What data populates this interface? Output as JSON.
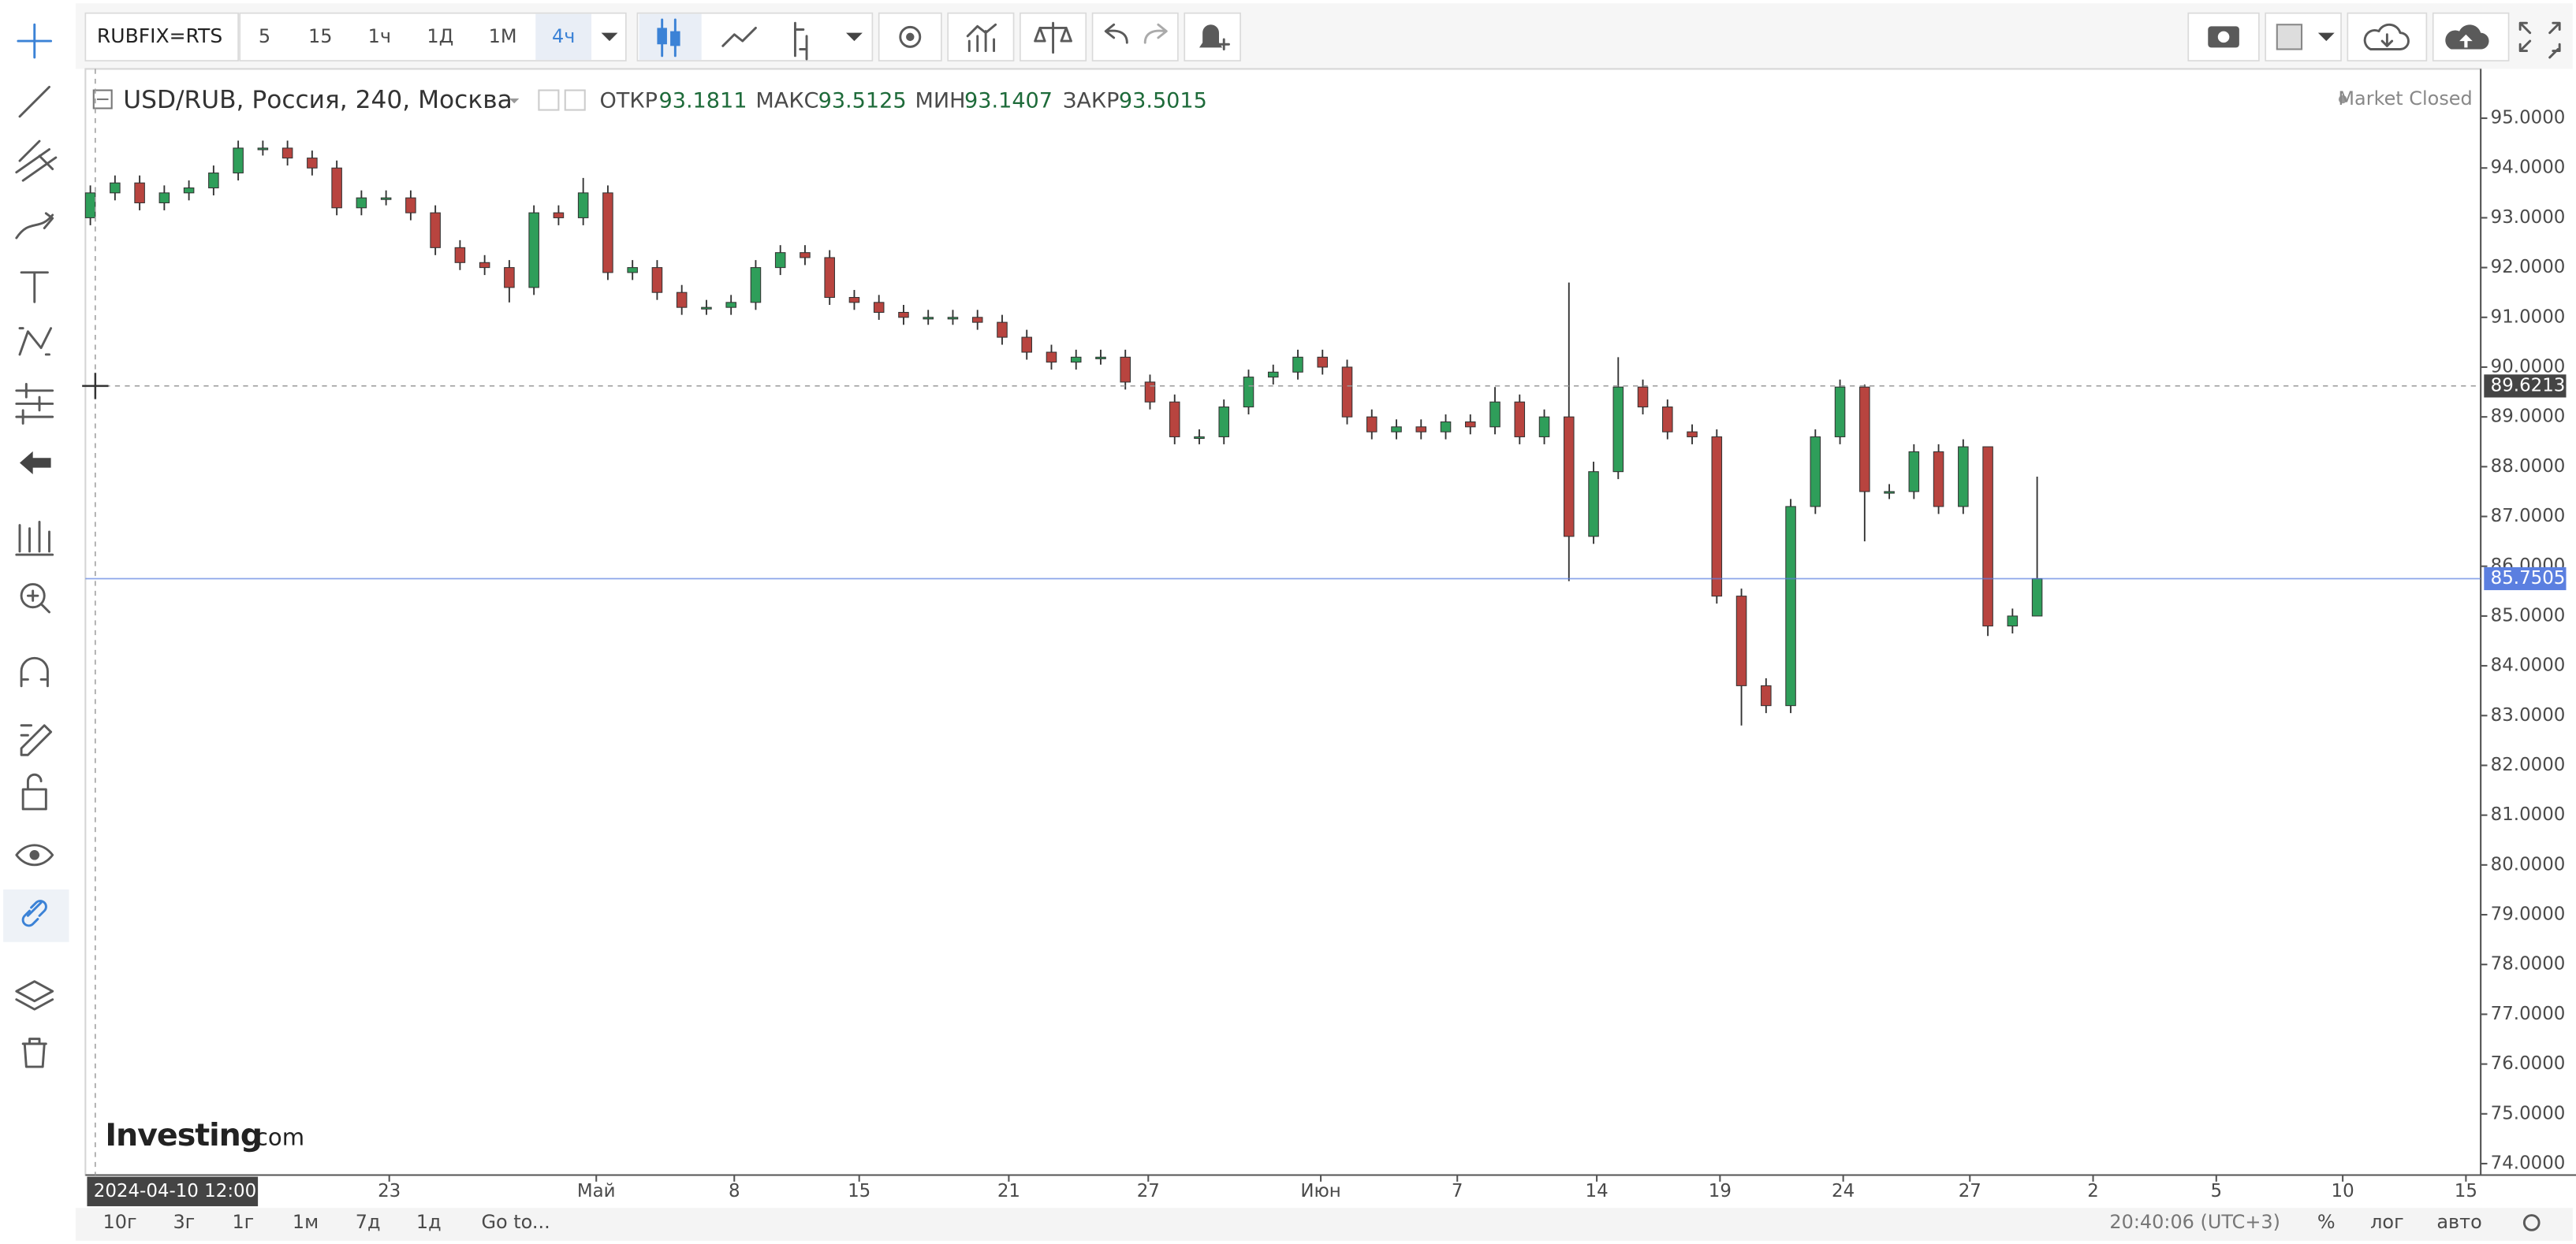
{
  "toolbar": {
    "symbol": "RUBFIX=RTS",
    "intervals": [
      "5",
      "15",
      "1ч",
      "1Д",
      "1М",
      "4ч"
    ]
  },
  "legend": {
    "title": "USD/RUB, Россия, 240, Москва",
    "open_label": "ОТКР",
    "open": "93.1811",
    "high_label": "МАКС",
    "high": "93.5125",
    "low_label": "МИН",
    "low": "93.1407",
    "close_label": "ЗАКР",
    "close": "93.5015",
    "status": "Market Closed"
  },
  "chart_data": {
    "type": "candlestick",
    "x": [
      0,
      1,
      2,
      3,
      4,
      5,
      6,
      7,
      8,
      9,
      10,
      11,
      12,
      13,
      14,
      15,
      16,
      17,
      18,
      19,
      20,
      21,
      22,
      23,
      24,
      25,
      26,
      27,
      28,
      29,
      30,
      31,
      32,
      33,
      34,
      35,
      36,
      37,
      38,
      39,
      40,
      41,
      42,
      43,
      44,
      45,
      46,
      47,
      48,
      49,
      50,
      51,
      52,
      53,
      54,
      55,
      56,
      57,
      58,
      59,
      60,
      61,
      62,
      63,
      64,
      65,
      66,
      67,
      68,
      69,
      70,
      71,
      72,
      73,
      74,
      75,
      76,
      77,
      78,
      79
    ],
    "open": [
      93.0,
      93.5,
      93.7,
      93.3,
      93.5,
      93.6,
      93.9,
      94.4,
      94.4,
      94.2,
      94.0,
      93.2,
      93.4,
      93.4,
      93.1,
      92.4,
      92.1,
      92.0,
      91.6,
      93.1,
      93.0,
      93.5,
      91.9,
      92.0,
      91.5,
      91.2,
      91.2,
      91.3,
      92.0,
      92.3,
      92.2,
      91.4,
      91.3,
      91.1,
      91.0,
      91.0,
      91.0,
      90.9,
      90.6,
      90.3,
      90.1,
      90.2,
      90.2,
      89.7,
      89.3,
      88.6,
      88.6,
      89.2,
      89.8,
      89.9,
      90.2,
      90.0,
      89.0,
      88.7,
      88.8,
      88.7,
      88.9,
      88.8,
      89.3,
      88.6,
      89.0,
      86.6,
      87.9,
      89.6,
      89.2,
      88.7,
      88.6,
      85.4,
      83.6,
      83.2,
      87.2,
      88.6,
      89.6,
      87.5,
      87.5,
      88.3,
      87.2,
      88.4,
      84.8,
      85.0
    ],
    "high": [
      93.65,
      93.85,
      93.85,
      93.65,
      93.75,
      94.05,
      94.55,
      94.55,
      94.55,
      94.35,
      94.15,
      93.55,
      93.55,
      93.55,
      93.25,
      92.55,
      92.25,
      92.15,
      93.25,
      93.25,
      93.8,
      93.65,
      92.15,
      92.15,
      91.65,
      91.35,
      91.45,
      92.15,
      92.45,
      92.45,
      92.35,
      91.55,
      91.45,
      91.25,
      91.15,
      91.15,
      91.15,
      91.05,
      90.75,
      90.45,
      90.35,
      90.35,
      90.35,
      89.85,
      89.45,
      88.75,
      89.35,
      89.95,
      90.05,
      90.35,
      90.35,
      90.15,
      89.15,
      88.95,
      88.95,
      89.05,
      89.05,
      89.6,
      89.45,
      89.15,
      91.7,
      88.1,
      90.2,
      89.75,
      89.35,
      88.85,
      88.75,
      85.55,
      83.75,
      87.35,
      88.75,
      89.75,
      89.65,
      87.65,
      88.45,
      88.45,
      88.55,
      88.3,
      85.15,
      87.8
    ],
    "low": [
      92.85,
      93.35,
      93.15,
      93.15,
      93.35,
      93.45,
      93.75,
      94.25,
      94.05,
      93.85,
      93.05,
      93.05,
      93.25,
      92.95,
      92.25,
      91.95,
      91.85,
      91.3,
      91.45,
      92.85,
      92.85,
      91.75,
      91.75,
      91.35,
      91.05,
      91.05,
      91.05,
      91.15,
      91.85,
      92.05,
      91.25,
      91.15,
      90.95,
      90.85,
      90.85,
      90.85,
      90.75,
      90.45,
      90.15,
      89.95,
      89.95,
      90.05,
      89.55,
      89.15,
      88.45,
      88.45,
      88.45,
      89.05,
      89.65,
      89.75,
      89.85,
      88.85,
      88.55,
      88.55,
      88.55,
      88.55,
      88.65,
      88.65,
      88.45,
      88.45,
      85.7,
      86.45,
      87.75,
      89.05,
      88.55,
      88.45,
      85.25,
      82.8,
      83.05,
      83.05,
      87.05,
      88.45,
      86.5,
      87.35,
      87.35,
      87.05,
      87.05,
      84.6,
      84.65,
      85.0
    ],
    "close": [
      93.5,
      93.7,
      93.3,
      93.5,
      93.6,
      93.9,
      94.4,
      94.4,
      94.2,
      94.0,
      93.2,
      93.4,
      93.4,
      93.1,
      92.4,
      92.1,
      92.0,
      91.6,
      93.1,
      93.0,
      93.5,
      91.9,
      92.0,
      91.5,
      91.2,
      91.2,
      91.3,
      92.0,
      92.3,
      92.2,
      91.4,
      91.3,
      91.1,
      91.0,
      91.0,
      91.0,
      90.9,
      90.6,
      90.3,
      90.1,
      90.2,
      90.2,
      89.7,
      89.3,
      88.6,
      88.6,
      89.2,
      89.8,
      89.9,
      90.2,
      90.0,
      89.0,
      88.7,
      88.8,
      88.7,
      88.9,
      88.8,
      89.3,
      88.6,
      89.0,
      86.6,
      87.9,
      89.6,
      89.2,
      88.7,
      88.6,
      85.4,
      83.6,
      83.2,
      87.2,
      88.6,
      89.6,
      87.5,
      87.5,
      88.3,
      87.2,
      88.4,
      84.8,
      85.0,
      85.75
    ],
    "up_color": "#2f9e5a",
    "down_color": "#b8443f",
    "xlim": [
      -0.2,
      97
    ],
    "xticks": [
      {
        "value": 12.13,
        "label": "23"
      },
      {
        "value": 20.53,
        "label": "Май"
      },
      {
        "value": 26.13,
        "label": "8"
      },
      {
        "value": 31.2,
        "label": "15"
      },
      {
        "value": 37.27,
        "label": "21"
      },
      {
        "value": 42.93,
        "label": "27"
      },
      {
        "value": 49.93,
        "label": "Июн"
      },
      {
        "value": 55.47,
        "label": "7"
      },
      {
        "value": 61.13,
        "label": "14"
      },
      {
        "value": 66.13,
        "label": "19"
      },
      {
        "value": 71.13,
        "label": "24"
      },
      {
        "value": 76.27,
        "label": "27"
      },
      {
        "value": 81.27,
        "label": "2"
      },
      {
        "value": 86.27,
        "label": "5"
      },
      {
        "value": 91.4,
        "label": "10"
      },
      {
        "value": 96.4,
        "label": "15"
      }
    ],
    "ylim": [
      73.77,
      95.99
    ],
    "yticks": [
      {
        "value": 74,
        "label": "74.0000"
      },
      {
        "value": 75,
        "label": "75.0000"
      },
      {
        "value": 76,
        "label": "76.0000"
      },
      {
        "value": 77,
        "label": "77.0000"
      },
      {
        "value": 78,
        "label": "78.0000"
      },
      {
        "value": 79,
        "label": "79.0000"
      },
      {
        "value": 80,
        "label": "80.0000"
      },
      {
        "value": 81,
        "label": "81.0000"
      },
      {
        "value": 82,
        "label": "82.0000"
      },
      {
        "value": 83,
        "label": "83.0000"
      },
      {
        "value": 84,
        "label": "84.0000"
      },
      {
        "value": 85,
        "label": "85.0000"
      },
      {
        "value": 86,
        "label": "86.0000"
      },
      {
        "value": 87,
        "label": "87.0000"
      },
      {
        "value": 88,
        "label": "88.0000"
      },
      {
        "value": 89,
        "label": "89.0000"
      },
      {
        "value": 90,
        "label": "90.0000"
      },
      {
        "value": 91,
        "label": "91.0000"
      },
      {
        "value": 92,
        "label": "92.0000"
      },
      {
        "value": 93,
        "label": "93.0000"
      },
      {
        "value": 94,
        "label": "94.0000"
      },
      {
        "value": 95,
        "label": "95.0000"
      }
    ],
    "grid": false,
    "crosshair": {
      "x": {
        "value": 0.2,
        "label": "2024-04-10 12:00:00"
      },
      "y": 89.6213
    },
    "last_price": 85.7505,
    "last_price_color": "#5b7fe0"
  },
  "watermark": {
    "brand": "Investing",
    "suffix": ".com"
  },
  "bottom_bar": {
    "ranges": [
      "10г",
      "3г",
      "1г",
      "1м",
      "7д",
      "1д"
    ],
    "goto": "Go to...",
    "clock": "20:40:06 (UTC+3)",
    "percent": "%",
    "log": "лог",
    "auto": "авто"
  }
}
